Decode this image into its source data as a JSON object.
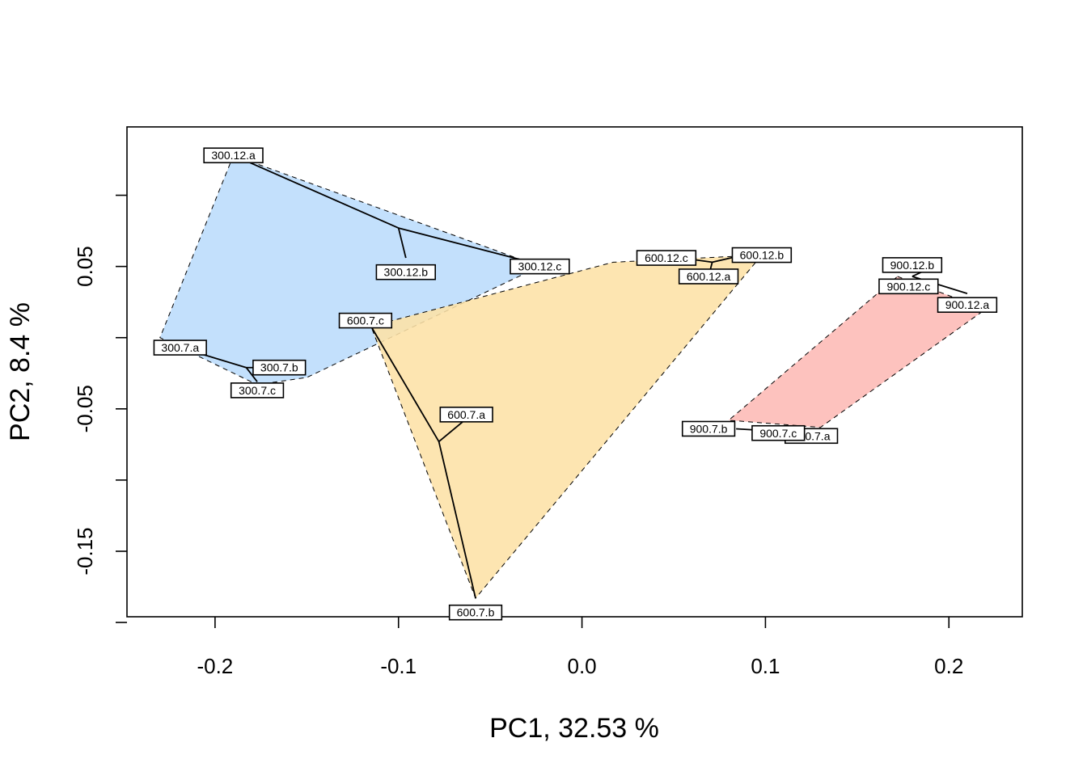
{
  "chart_data": {
    "type": "scatter",
    "title": "",
    "xlabel": "PC1,  32.53 %",
    "ylabel": "PC2,  8.4 %",
    "xlim": [
      -0.248,
      0.24
    ],
    "ylim": [
      -0.196,
      0.148
    ],
    "xticks": [
      -0.2,
      -0.1,
      0.0,
      0.1,
      0.2
    ],
    "xtick_labels": [
      "-0.2",
      "-0.1",
      "0.0",
      "0.1",
      "0.2"
    ],
    "yticks": [
      -0.2,
      -0.15,
      -0.1,
      -0.05,
      0.0,
      0.05,
      0.1
    ],
    "ytick_labels": [
      "",
      "-0.15",
      "",
      "-0.05",
      "",
      "0.05",
      ""
    ],
    "grid": false,
    "groups": [
      {
        "color": "#bbdcfc",
        "hull": [
          [
            -0.19,
            0.128
          ],
          [
            -0.023,
            0.05
          ],
          [
            -0.15,
            -0.028
          ],
          [
            -0.177,
            -0.033
          ],
          [
            -0.23,
            0.0
          ]
        ],
        "centroid": [
          -0.1,
          0.077
        ],
        "points": [
          {
            "label": "300.12.a",
            "x": -0.19,
            "y": 0.128
          },
          {
            "label": "300.12.b",
            "x": -0.096,
            "y": 0.046
          },
          {
            "label": "300.12.c",
            "x": -0.023,
            "y": 0.05
          },
          {
            "label": "300.7.a",
            "x": -0.219,
            "y": -0.007
          },
          {
            "label": "300.7.b",
            "x": -0.165,
            "y": -0.021
          },
          {
            "label": "300.7.c",
            "x": -0.177,
            "y": -0.037
          }
        ],
        "tree": [
          [
            [
              -0.19,
              0.128
            ],
            [
              -0.1,
              0.077
            ]
          ],
          [
            [
              -0.1,
              0.077
            ],
            [
              -0.096,
              0.056
            ]
          ],
          [
            [
              -0.1,
              0.077
            ],
            [
              -0.028,
              0.053
            ]
          ],
          [
            [
              -0.219,
              -0.007
            ],
            [
              -0.183,
              -0.021
            ]
          ],
          [
            [
              -0.183,
              -0.021
            ],
            [
              -0.165,
              -0.021
            ]
          ],
          [
            [
              -0.183,
              -0.021
            ],
            [
              -0.177,
              -0.031
            ]
          ]
        ]
      },
      {
        "color": "#fde1a6",
        "hull": [
          [
            -0.115,
            0.008
          ],
          [
            0.017,
            0.053
          ],
          [
            0.098,
            0.058
          ],
          [
            -0.058,
            -0.183
          ]
        ],
        "centroid": [
          -0.078,
          -0.073
        ],
        "points": [
          {
            "label": "600.12.a",
            "x": 0.069,
            "y": 0.043
          },
          {
            "label": "600.12.b",
            "x": 0.098,
            "y": 0.058
          },
          {
            "label": "600.12.c",
            "x": 0.046,
            "y": 0.056
          },
          {
            "label": "600.7.a",
            "x": -0.063,
            "y": -0.054
          },
          {
            "label": "600.7.b",
            "x": -0.058,
            "y": -0.193
          },
          {
            "label": "600.7.c",
            "x": -0.118,
            "y": 0.012
          }
        ],
        "tree": [
          [
            [
              0.071,
              0.053
            ],
            [
              0.07,
              0.048
            ]
          ],
          [
            [
              0.071,
              0.053
            ],
            [
              0.088,
              0.058
            ]
          ],
          [
            [
              0.071,
              0.053
            ],
            [
              0.06,
              0.055
            ]
          ],
          [
            [
              -0.115,
              0.008
            ],
            [
              -0.078,
              -0.073
            ]
          ],
          [
            [
              -0.078,
              -0.073
            ],
            [
              -0.064,
              -0.058
            ]
          ],
          [
            [
              -0.078,
              -0.073
            ],
            [
              -0.058,
              -0.183
            ]
          ]
        ]
      },
      {
        "color": "#fdb9b5",
        "hull": [
          [
            0.172,
            0.043
          ],
          [
            0.22,
            0.02
          ],
          [
            0.13,
            -0.063
          ],
          [
            0.08,
            -0.058
          ]
        ],
        "centroid": [
          0.18,
          0.043
        ],
        "points": [
          {
            "label": "900.12.a",
            "x": 0.21,
            "y": 0.023
          },
          {
            "label": "900.12.b",
            "x": 0.18,
            "y": 0.051
          },
          {
            "label": "900.12.c",
            "x": 0.178,
            "y": 0.036
          },
          {
            "label": "900.7.a",
            "x": 0.125,
            "y": -0.069
          },
          {
            "label": "900.7.b",
            "x": 0.069,
            "y": -0.064
          },
          {
            "label": "900.7.c",
            "x": 0.107,
            "y": -0.067
          }
        ],
        "tree": [
          [
            [
              0.18,
              0.043
            ],
            [
              0.21,
              0.031
            ]
          ],
          [
            [
              0.18,
              0.043
            ],
            [
              0.185,
              0.046
            ]
          ],
          [
            [
              0.084,
              -0.064
            ],
            [
              0.11,
              -0.066
            ]
          ],
          [
            [
              0.11,
              -0.066
            ],
            [
              0.13,
              -0.068
            ]
          ]
        ]
      }
    ]
  }
}
